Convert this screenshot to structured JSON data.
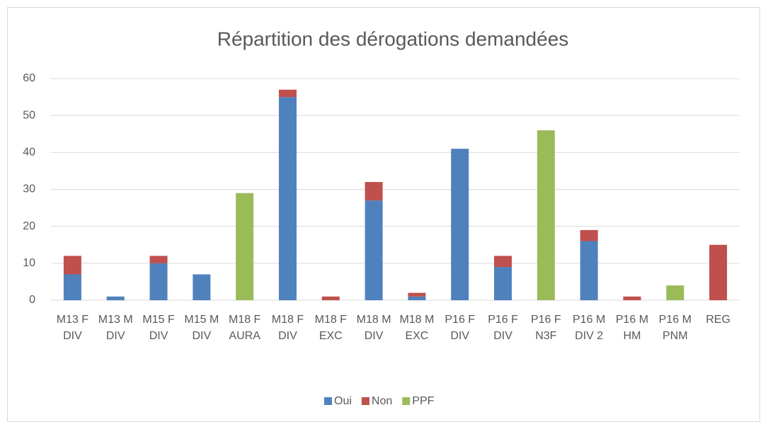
{
  "chart_data": {
    "type": "bar",
    "stacked": true,
    "title": "Répartition des dérogations demandées",
    "categories": [
      "M13 F DIV",
      "M13 M DIV",
      "M15 F DIV",
      "M15 M DIV",
      "M18 F AURA",
      "M18 F DIV",
      "M18 F EXC",
      "M18 M DIV",
      "M18 M EXC",
      "P16 F DIV",
      "P16 F DIV",
      "P16 F N3F",
      "P16 M DIV 2",
      "P16 M HM",
      "P16 M PNM",
      "REG"
    ],
    "series": [
      {
        "name": "Oui",
        "color": "#4f81bd",
        "values": [
          7,
          1,
          10,
          7,
          0,
          55,
          0,
          27,
          1,
          41,
          9,
          0,
          16,
          0,
          0,
          0
        ]
      },
      {
        "name": "Non",
        "color": "#c0504d",
        "values": [
          5,
          0,
          2,
          0,
          0,
          2,
          1,
          5,
          1,
          0,
          3,
          0,
          3,
          1,
          0,
          15
        ]
      },
      {
        "name": "PPF",
        "color": "#9bbb59",
        "values": [
          0,
          0,
          0,
          0,
          29,
          0,
          0,
          0,
          0,
          0,
          0,
          46,
          0,
          0,
          4,
          0
        ]
      }
    ],
    "ylim": [
      0,
      60
    ],
    "yticks": [
      0,
      10,
      20,
      30,
      40,
      50,
      60
    ],
    "grid": true,
    "legend": "bottom"
  }
}
